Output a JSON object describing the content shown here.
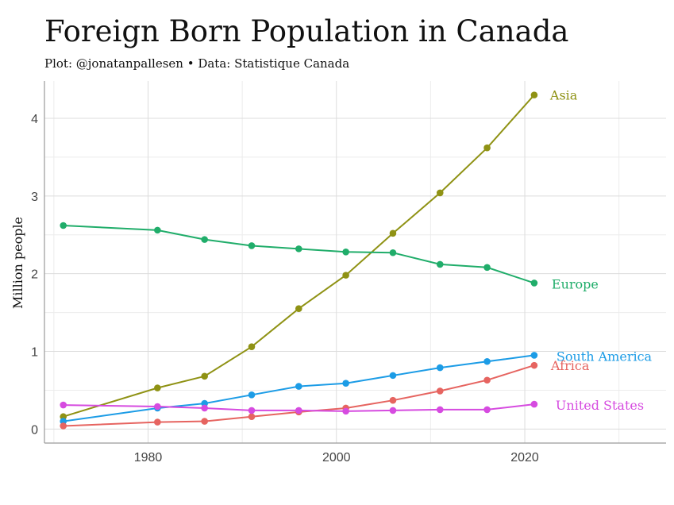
{
  "title": "Foreign Born Population in Canada",
  "subtitle": "Plot: @jonatanpallesen • Data: Statistique Canada",
  "chart_data": {
    "type": "line",
    "title": "Foreign Born Population in Canada",
    "subtitle": "Plot: @jonatanpallesen • Data: Statistique Canada",
    "xlabel": "",
    "ylabel": "Million people",
    "xlim": [
      1969,
      2035
    ],
    "ylim": [
      -0.18,
      4.48
    ],
    "xticks": [
      1980,
      2000,
      2020
    ],
    "yticks": [
      0,
      1,
      2,
      3,
      4
    ],
    "grid": true,
    "legend": "direct-labels-right",
    "x": [
      1971,
      1981,
      1986,
      1991,
      1996,
      2001,
      2006,
      2011,
      2016,
      2021
    ],
    "series": [
      {
        "name": "Asia",
        "color": "#8f9214",
        "values": [
          0.16,
          0.53,
          0.68,
          1.06,
          1.55,
          1.98,
          2.52,
          3.04,
          3.62,
          4.3
        ]
      },
      {
        "name": "Europe",
        "color": "#20ad6a",
        "values": [
          2.62,
          2.56,
          2.44,
          2.36,
          2.32,
          2.28,
          2.27,
          2.12,
          2.08,
          1.88
        ]
      },
      {
        "name": "South America",
        "color": "#1c9ce6",
        "values": [
          0.1,
          0.27,
          0.33,
          0.44,
          0.55,
          0.59,
          0.69,
          0.79,
          0.87,
          0.95
        ]
      },
      {
        "name": "Africa",
        "color": "#e66460",
        "values": [
          0.04,
          0.09,
          0.1,
          0.16,
          0.22,
          0.27,
          0.37,
          0.49,
          0.63,
          0.82
        ]
      },
      {
        "name": "United States",
        "color": "#d64be0",
        "values": [
          0.31,
          0.29,
          0.27,
          0.24,
          0.24,
          0.23,
          0.24,
          0.25,
          0.25,
          0.32
        ]
      }
    ]
  }
}
